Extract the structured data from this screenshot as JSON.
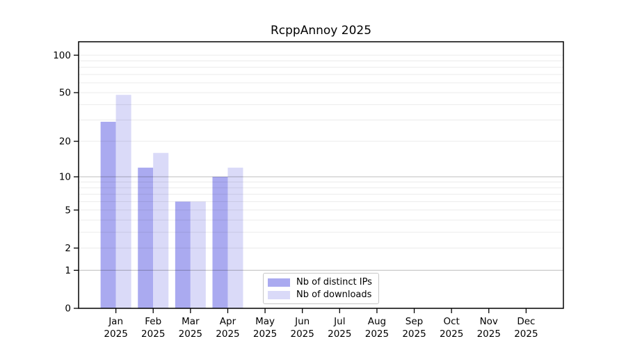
{
  "chart_data": {
    "type": "bar",
    "title": "RcppAnnoy 2025",
    "y_scale": "log1p",
    "grid": true,
    "background": "#ffffff",
    "frame_color": "#000000",
    "categories": [
      "Jan",
      "Feb",
      "Mar",
      "Apr",
      "May",
      "Jun",
      "Jul",
      "Aug",
      "Sep",
      "Oct",
      "Nov",
      "Dec"
    ],
    "x_year_label": "2025",
    "series": [
      {
        "name": "Nb of distinct IPs",
        "color": "#aaaaf0",
        "values": [
          29,
          12,
          6,
          10,
          null,
          null,
          null,
          null,
          null,
          null,
          null,
          null
        ]
      },
      {
        "name": "Nb of downloads",
        "color": "#dadaf8",
        "values": [
          48,
          16,
          6,
          12,
          null,
          null,
          null,
          null,
          null,
          null,
          null,
          null
        ]
      }
    ],
    "y_axis": {
      "ticks": [
        100,
        50,
        20,
        10,
        5,
        2,
        1,
        0
      ],
      "top_value": 128
    },
    "gridlines": {
      "minor": [
        2,
        3,
        4,
        5,
        6,
        7,
        8,
        9,
        20,
        30,
        40,
        50,
        60,
        70,
        80,
        90,
        100
      ],
      "major": [
        1,
        10
      ]
    },
    "legend_position": "inside-bottom, left of center"
  }
}
